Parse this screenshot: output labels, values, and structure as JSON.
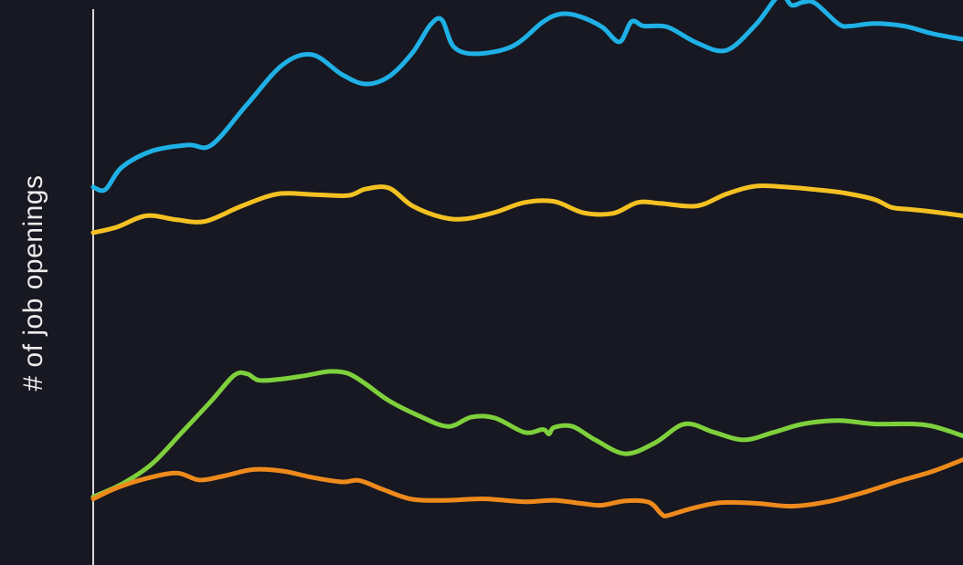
{
  "chart_data": {
    "type": "line",
    "ylabel": "# of job openings",
    "xlabel": "",
    "title": "",
    "grid": false,
    "xlim": [
      0,
      100
    ],
    "ylim": [
      0,
      100
    ],
    "series": [
      {
        "color": "#1fb0e6",
        "x": [
          0,
          1.4,
          3.3,
          6.8,
          10.9,
          13.6,
          17.7,
          21.8,
          25.2,
          28.6,
          31.3,
          34.0,
          36.7,
          38.8,
          40.1,
          41.5,
          44.2,
          48.3,
          51.7,
          53.7,
          55.8,
          58.5,
          60.5,
          61.9,
          63.3,
          66.0,
          69.4,
          72.8,
          76.2,
          78.9,
          80.3,
          81.6,
          83.0,
          85.7,
          87.1,
          89.8,
          93.2,
          96.6,
          100
        ],
        "y": [
          64.1,
          63.6,
          68.1,
          71.4,
          72.6,
          72.6,
          80.8,
          88.8,
          90.8,
          86.8,
          84.9,
          86.4,
          91.2,
          96.9,
          97.8,
          92.3,
          91.0,
          92.6,
          97.4,
          99.0,
          98.6,
          96.4,
          93.4,
          97.5,
          96.6,
          96.4,
          93.2,
          91.7,
          96.9,
          102.8,
          100.8,
          101.4,
          101.2,
          97.0,
          96.6,
          97.1,
          96.6,
          95.0,
          93.9
        ]
      },
      {
        "color": "#f4c123",
        "x": [
          0,
          2.7,
          6.1,
          9.6,
          12.9,
          17.1,
          21.2,
          25.2,
          29.3,
          31.3,
          34.0,
          36.7,
          40.1,
          42.8,
          46.2,
          49.6,
          53.0,
          56.4,
          59.8,
          62.6,
          65.3,
          69.4,
          72.8,
          76.2,
          79.6,
          83.0,
          86.4,
          89.8,
          91.8,
          93.9,
          96.6,
          100
        ],
        "y": [
          54.9,
          56.0,
          58.3,
          57.5,
          57.2,
          60.3,
          62.7,
          62.6,
          62.4,
          63.7,
          63.9,
          60.3,
          58.0,
          57.7,
          59.0,
          61.0,
          61.2,
          58.9,
          58.8,
          61.0,
          60.8,
          60.3,
          62.7,
          64.3,
          64.1,
          63.6,
          62.9,
          61.6,
          60.0,
          59.6,
          59.1,
          58.3
        ]
      },
      {
        "color": "#7ed03c",
        "x": [
          0,
          3.4,
          6.8,
          10.2,
          13.6,
          16.2,
          17.7,
          19.1,
          21.8,
          24.5,
          27.2,
          29.3,
          31.3,
          34.0,
          37.4,
          40.8,
          43.5,
          46.2,
          49.6,
          51.7,
          52.4,
          53.0,
          55.1,
          57.8,
          61.2,
          64.6,
          68.0,
          71.4,
          74.8,
          78.2,
          81.6,
          85.7,
          89.8,
          93.9,
          96.6,
          100
        ],
        "y": [
          1.6,
          4.3,
          8.3,
          14.6,
          21.0,
          26.1,
          26.4,
          25.1,
          25.4,
          26.1,
          26.9,
          26.5,
          24.4,
          21.0,
          18.0,
          15.8,
          17.7,
          17.5,
          14.6,
          15.2,
          14.3,
          15.6,
          15.8,
          13.0,
          10.3,
          12.5,
          16.3,
          14.6,
          13.1,
          14.6,
          16.3,
          17.0,
          16.3,
          16.3,
          15.8,
          13.9
        ]
      },
      {
        "color": "#ee8a1c",
        "x": [
          0,
          2.7,
          6.1,
          9.6,
          12.2,
          15.0,
          18.4,
          21.8,
          25.2,
          28.6,
          30.6,
          33.3,
          36.7,
          40.8,
          44.9,
          49.6,
          53.0,
          56.4,
          58.5,
          61.2,
          63.9,
          65.3,
          66.0,
          68.7,
          72.1,
          76.2,
          80.3,
          84.4,
          88.4,
          92.5,
          96.6,
          100
        ],
        "y": [
          1.2,
          3.4,
          5.3,
          6.4,
          5.0,
          5.8,
          7.1,
          6.8,
          5.5,
          4.6,
          4.9,
          3.1,
          1.1,
          0.9,
          1.2,
          0.6,
          0.9,
          0.2,
          -0.1,
          0.8,
          0.5,
          -1.8,
          -2.2,
          -0.8,
          0.4,
          0.3,
          -0.3,
          0.6,
          2.4,
          4.7,
          6.8,
          9.1
        ]
      }
    ]
  }
}
